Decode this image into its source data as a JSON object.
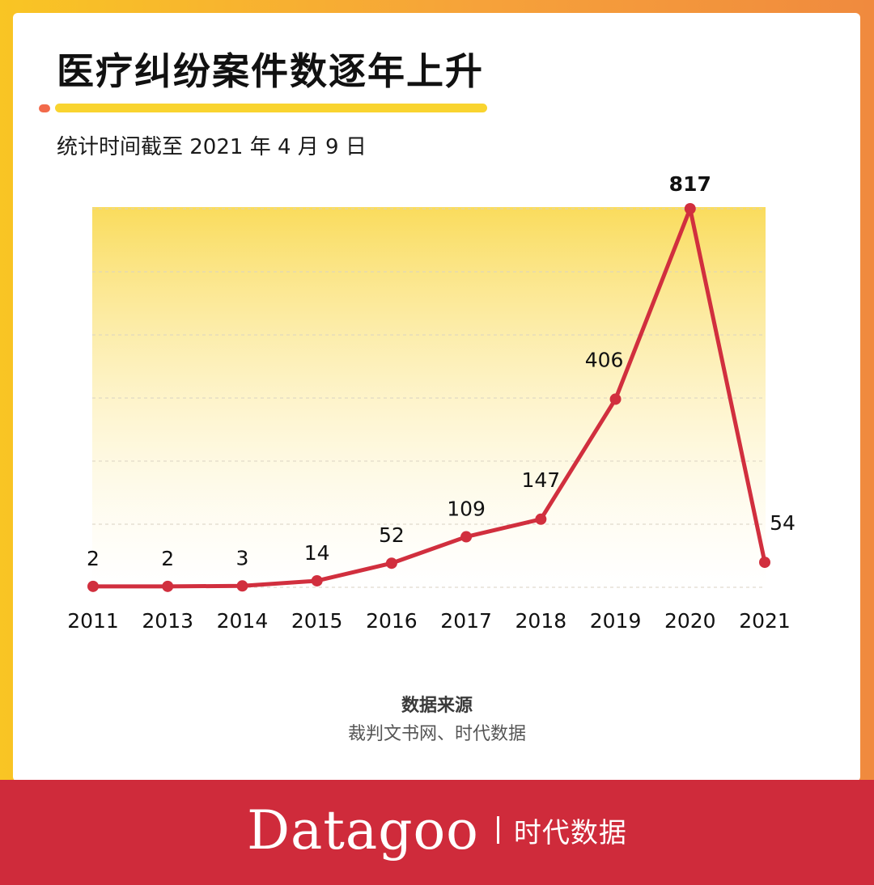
{
  "title": "医疗纠纷案件数逐年上升",
  "subtitle": "统计时间截至 2021 年 4 月 9 日",
  "colors": {
    "accent": "#d12f3e",
    "fill_top": "#f9d84a",
    "footer": "#cf2b3b"
  },
  "chart_data": {
    "type": "line",
    "categories": [
      "2011",
      "2013",
      "2014",
      "2015",
      "2016",
      "2017",
      "2018",
      "2019",
      "2020",
      "2021"
    ],
    "values": [
      2,
      2,
      3,
      14,
      52,
      109,
      147,
      406,
      817,
      54
    ],
    "highlight_label": "2020",
    "grid": true,
    "ylim": [
      0,
      817
    ]
  },
  "source": {
    "label": "数据来源",
    "text": "裁判文书网、时代数据"
  },
  "footer": {
    "logo": "Datagoo",
    "name": "时代数据"
  }
}
